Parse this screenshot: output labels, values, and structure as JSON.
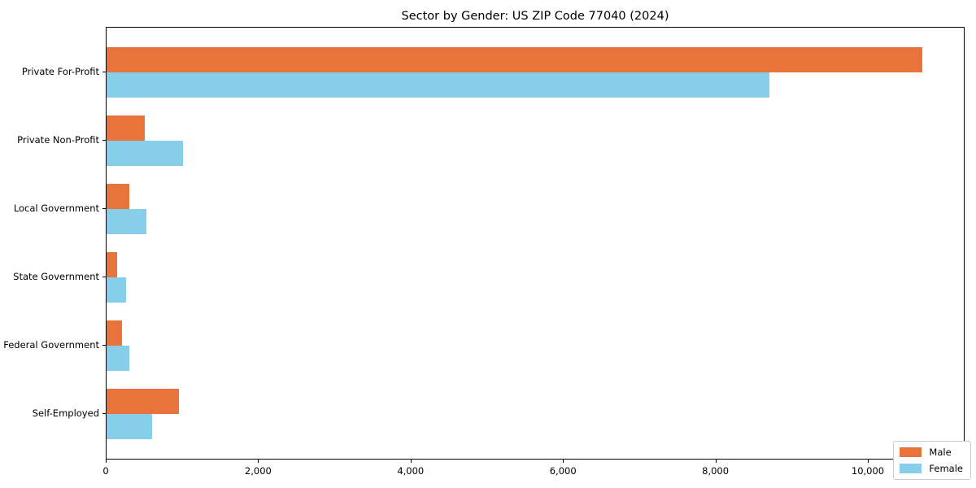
{
  "figure": {
    "background": "#ffffff",
    "axis_color": "#000000"
  },
  "chart_data": {
    "type": "bar",
    "orientation": "horizontal",
    "title": "Sector by Gender: US ZIP Code 77040 (2024)",
    "categories": [
      "Private For-Profit",
      "Private Non-Profit",
      "Local Government",
      "State Government",
      "Federal Government",
      "Self-Employed"
    ],
    "series": [
      {
        "name": "Male",
        "color": "#e8743b",
        "values": [
          10700,
          500,
          300,
          140,
          200,
          950
        ]
      },
      {
        "name": "Female",
        "color": "#87ceeb",
        "values": [
          8700,
          1000,
          520,
          260,
          300,
          600
        ]
      }
    ],
    "xlabel": "",
    "ylabel": "",
    "xlim": [
      0,
      11270
    ],
    "xticks": [
      0,
      2000,
      4000,
      6000,
      8000,
      10000
    ],
    "xticklabels": [
      "0",
      "2,000",
      "4,000",
      "6,000",
      "8,000",
      "10,000"
    ],
    "grid": false,
    "legend_position": "lower right"
  }
}
